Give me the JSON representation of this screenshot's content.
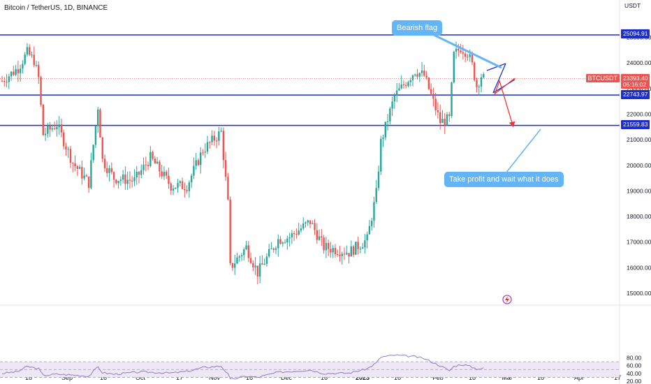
{
  "header": {
    "symbol_title": "Bitcoin / TetherUS, 1D, BINANCE",
    "currency_label": "USDT"
  },
  "price_tags": {
    "symbol": "BTCUSDT",
    "last_price": "23393.40",
    "countdown": "05:16:02",
    "level_25094": "25094.91",
    "level_22743": "22743.97",
    "level_21559": "21559.83"
  },
  "colors": {
    "level_line": "#1e2ec9",
    "up": "#26a69a",
    "down": "#ef5350",
    "callout": "#64b5f6",
    "rsi_line": "#8e7cc3",
    "rsi_band": "#ede7f6",
    "projection": "#e53935"
  },
  "annotations": {
    "bearish_flag": "Bearish flag",
    "take_profit": "Take profit and wait what it does"
  },
  "rsi_axis": [
    "80.00",
    "60.00",
    "40.00",
    "20.00"
  ],
  "chart_data": [
    {
      "type": "candlestick",
      "title": "Bitcoin / TetherUS, 1D, BINANCE",
      "ylabel": "USDT",
      "ylim": [
        15000,
        26000
      ],
      "y_ticks": [
        "25000.00",
        "24000.00",
        "23000.00",
        "22000.00",
        "21000.00",
        "20000.00",
        "19000.00",
        "18000.00",
        "17000.00",
        "16000.00",
        "15000.00"
      ],
      "x_ticks": [
        "16",
        "Sep",
        "16",
        "Oct",
        "17",
        "Nov",
        "16",
        "Dec",
        "16",
        "2023",
        "16",
        "Feb",
        "16",
        "Mar",
        "16",
        "Apr",
        "17"
      ],
      "horizontal_levels": [
        25094.91,
        22743.97,
        21559.83
      ],
      "last_price": 23393.4,
      "closes": [
        {
          "x": "Aug 1",
          "y": 23300
        },
        {
          "x": "Aug 8",
          "y": 23800
        },
        {
          "x": "Aug 12",
          "y": 24400
        },
        {
          "x": "Aug 15",
          "y": 24100
        },
        {
          "x": "Aug 17",
          "y": 23400
        },
        {
          "x": "Aug 19",
          "y": 21200
        },
        {
          "x": "Aug 25",
          "y": 21600
        },
        {
          "x": "Sep 1",
          "y": 20100
        },
        {
          "x": "Sep 8",
          "y": 19300
        },
        {
          "x": "Sep 12",
          "y": 22300
        },
        {
          "x": "Sep 14",
          "y": 20200
        },
        {
          "x": "Sep 19",
          "y": 19500
        },
        {
          "x": "Sep 28",
          "y": 19400
        },
        {
          "x": "Oct 5",
          "y": 20300
        },
        {
          "x": "Oct 14",
          "y": 19200
        },
        {
          "x": "Oct 21",
          "y": 19200
        },
        {
          "x": "Oct 28",
          "y": 20600
        },
        {
          "x": "Nov 5",
          "y": 21300
        },
        {
          "x": "Nov 8",
          "y": 18500
        },
        {
          "x": "Nov 9",
          "y": 16000
        },
        {
          "x": "Nov 16",
          "y": 16800
        },
        {
          "x": "Nov 21",
          "y": 15800
        },
        {
          "x": "Nov 30",
          "y": 17100
        },
        {
          "x": "Dec 5",
          "y": 17200
        },
        {
          "x": "Dec 14",
          "y": 17800
        },
        {
          "x": "Dec 20",
          "y": 16800
        },
        {
          "x": "Dec 31",
          "y": 16600
        },
        {
          "x": "Jan 8",
          "y": 17100
        },
        {
          "x": "Jan 12",
          "y": 18900
        },
        {
          "x": "Jan 14",
          "y": 20900
        },
        {
          "x": "Jan 20",
          "y": 22700
        },
        {
          "x": "Jan 29",
          "y": 23700
        },
        {
          "x": "Feb 2",
          "y": 23500
        },
        {
          "x": "Feb 9",
          "y": 21700
        },
        {
          "x": "Feb 13",
          "y": 21800
        },
        {
          "x": "Feb 15",
          "y": 24300
        },
        {
          "x": "Feb 18",
          "y": 24600
        },
        {
          "x": "Feb 21",
          "y": 24400
        },
        {
          "x": "Feb 23",
          "y": 23900
        },
        {
          "x": "Feb 25",
          "y": 23100
        },
        {
          "x": "Feb 27",
          "y": 23500
        },
        {
          "x": "Feb 28",
          "y": 23393.4
        }
      ],
      "projection": [
        {
          "x": "Mar 1",
          "y": 23400
        },
        {
          "x": "Mar 5",
          "y": 22800
        },
        {
          "x": "Mar 7",
          "y": 23300
        },
        {
          "x": "Mar 13",
          "y": 21500
        }
      ]
    },
    {
      "type": "line",
      "title": "",
      "ylim": [
        20,
        90
      ],
      "y_ticks": [
        "80.00",
        "60.00",
        "40.00",
        "20.00"
      ],
      "bands": [
        70,
        50,
        30
      ],
      "values": [
        {
          "x": "Aug 1",
          "y": 40
        },
        {
          "x": "Aug 8",
          "y": 45
        },
        {
          "x": "Aug 12",
          "y": 58
        },
        {
          "x": "Aug 17",
          "y": 52
        },
        {
          "x": "Aug 19",
          "y": 35
        },
        {
          "x": "Aug 25",
          "y": 38
        },
        {
          "x": "Sep 1",
          "y": 36
        },
        {
          "x": "Sep 8",
          "y": 33
        },
        {
          "x": "Sep 12",
          "y": 57
        },
        {
          "x": "Sep 14",
          "y": 42
        },
        {
          "x": "Sep 19",
          "y": 38
        },
        {
          "x": "Oct 1",
          "y": 44
        },
        {
          "x": "Oct 14",
          "y": 41
        },
        {
          "x": "Oct 21",
          "y": 45
        },
        {
          "x": "Oct 28",
          "y": 55
        },
        {
          "x": "Nov 5",
          "y": 59
        },
        {
          "x": "Nov 8",
          "y": 38
        },
        {
          "x": "Nov 9",
          "y": 24
        },
        {
          "x": "Nov 16",
          "y": 33
        },
        {
          "x": "Nov 21",
          "y": 30
        },
        {
          "x": "Nov 30",
          "y": 43
        },
        {
          "x": "Dec 5",
          "y": 45
        },
        {
          "x": "Dec 14",
          "y": 49
        },
        {
          "x": "Dec 20",
          "y": 40
        },
        {
          "x": "Dec 31",
          "y": 41
        },
        {
          "x": "Jan 8",
          "y": 52
        },
        {
          "x": "Jan 12",
          "y": 67
        },
        {
          "x": "Jan 14",
          "y": 82
        },
        {
          "x": "Jan 20",
          "y": 87
        },
        {
          "x": "Jan 29",
          "y": 83
        },
        {
          "x": "Feb 2",
          "y": 78
        },
        {
          "x": "Feb 9",
          "y": 60
        },
        {
          "x": "Feb 13",
          "y": 47
        },
        {
          "x": "Feb 15",
          "y": 58
        },
        {
          "x": "Feb 18",
          "y": 63
        },
        {
          "x": "Feb 21",
          "y": 60
        },
        {
          "x": "Feb 25",
          "y": 52
        },
        {
          "x": "Feb 28",
          "y": 53
        }
      ]
    }
  ]
}
